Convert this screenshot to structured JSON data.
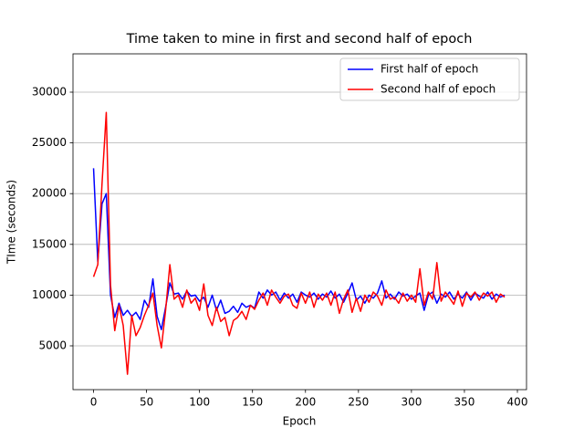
{
  "chart_data": {
    "type": "line",
    "title": "Time taken to mine in first and second half of epoch",
    "x_label": "Epoch",
    "y_label": "TIme (seconds)",
    "x": [
      0,
      4,
      8,
      12,
      16,
      20,
      24,
      28,
      32,
      36,
      40,
      44,
      48,
      52,
      56,
      60,
      64,
      68,
      72,
      76,
      80,
      84,
      88,
      92,
      96,
      100,
      104,
      108,
      112,
      116,
      120,
      124,
      128,
      132,
      136,
      140,
      144,
      148,
      152,
      156,
      160,
      164,
      168,
      172,
      176,
      180,
      184,
      188,
      192,
      196,
      200,
      204,
      208,
      212,
      216,
      220,
      224,
      228,
      232,
      236,
      240,
      244,
      248,
      252,
      256,
      260,
      264,
      268,
      272,
      276,
      280,
      284,
      288,
      292,
      296,
      300,
      304,
      308,
      312,
      316,
      320,
      324,
      328,
      332,
      336,
      340,
      344,
      348,
      352,
      356,
      360,
      364,
      368,
      372,
      376,
      380,
      384,
      388
    ],
    "series": [
      {
        "name": "First half of epoch",
        "color": "#0000ff",
        "values": [
          22500,
          13300,
          19000,
          20000,
          10000,
          7800,
          9200,
          8000,
          8500,
          7900,
          8300,
          7600,
          9500,
          8800,
          11600,
          7900,
          6600,
          8800,
          11200,
          10100,
          10200,
          9600,
          10400,
          9900,
          10000,
          9400,
          9800,
          8800,
          10000,
          8500,
          9500,
          8200,
          8400,
          8900,
          8300,
          9200,
          8800,
          9000,
          8700,
          10300,
          9700,
          10500,
          10000,
          10300,
          9500,
          10200,
          9700,
          10100,
          9300,
          10300,
          10000,
          9800,
          10200,
          9600,
          10100,
          9800,
          10400,
          9700,
          10100,
          9300,
          10200,
          11200,
          9500,
          9900,
          9200,
          10000,
          9700,
          10200,
          11400,
          9700,
          10100,
          9600,
          10300,
          9900,
          10100,
          9600,
          9900,
          10200,
          8500,
          10000,
          10300,
          9200,
          10100,
          9800,
          10300,
          9600,
          10100,
          9700,
          10300,
          9500,
          10200,
          9900,
          9700,
          10300,
          9600,
          10100,
          9800,
          10000
        ]
      },
      {
        "name": "Second half of epoch",
        "color": "#ff0000",
        "values": [
          11800,
          13000,
          21000,
          28000,
          11000,
          6500,
          9000,
          7000,
          2200,
          8000,
          6000,
          6800,
          8000,
          9000,
          10200,
          7000,
          4800,
          8500,
          13000,
          9600,
          10000,
          8800,
          10500,
          9200,
          9700,
          8500,
          11100,
          8000,
          7000,
          8800,
          7400,
          7800,
          6000,
          7500,
          7800,
          8400,
          7600,
          9000,
          8600,
          9500,
          10200,
          9000,
          10500,
          9800,
          9200,
          9900,
          10100,
          9000,
          8700,
          10200,
          9200,
          10300,
          8800,
          10100,
          9500,
          10200,
          9000,
          10300,
          8200,
          9600,
          10500,
          8300,
          9700,
          8400,
          10000,
          9300,
          10300,
          9900,
          9000,
          10500,
          9600,
          9800,
          9200,
          10200,
          9400,
          10000,
          9300,
          12600,
          9000,
          10300,
          9600,
          13200,
          9400,
          10300,
          9700,
          9100,
          10400,
          8900,
          10200,
          9800,
          10300,
          9500,
          10200,
          9900,
          10300,
          9300,
          10100,
          9800
        ]
      }
    ],
    "xlim": [
      -19.4,
      408.6
    ],
    "ylim": [
      683,
      33777
    ],
    "xticks": [
      0,
      50,
      100,
      150,
      200,
      250,
      300,
      350,
      400
    ],
    "yticks": [
      5000,
      10000,
      15000,
      20000,
      25000,
      30000
    ],
    "grid": "y",
    "legend": "upper right"
  }
}
